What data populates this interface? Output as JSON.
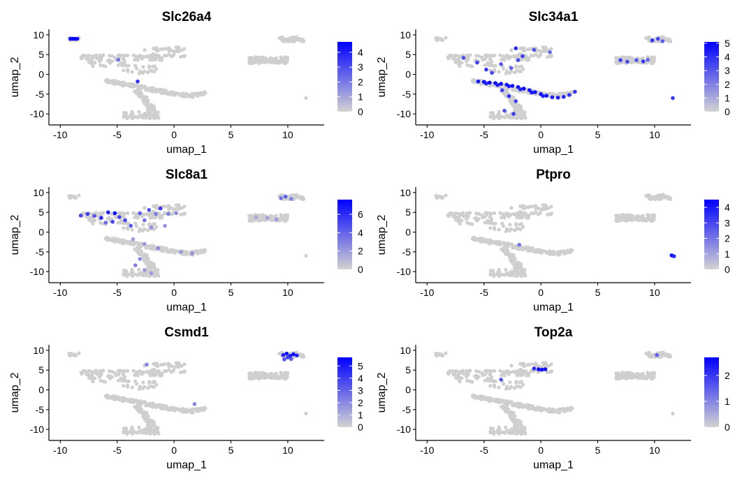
{
  "chart_data": [
    {
      "type": "scatter",
      "title": "Slc26a4",
      "xlabel": "umap_1",
      "ylabel": "umap_2",
      "xlim": [
        -11,
        13.2
      ],
      "ylim": [
        -12.8,
        11.4
      ],
      "xticks": [
        -10,
        -5,
        0,
        5,
        10
      ],
      "yticks": [
        -10,
        -5,
        0,
        5,
        10
      ],
      "grid": false,
      "colorbar": {
        "min": 0,
        "max": 4.7,
        "ticks": [
          0,
          1,
          2,
          3,
          4
        ],
        "low_color": "#d3d3d3",
        "high_color": "#0000ff"
      },
      "points": [
        [
          -9.1,
          9.0,
          4.6
        ],
        [
          -8.9,
          9.0,
          4.5
        ],
        [
          -8.7,
          9.0,
          4.6
        ],
        [
          -8.5,
          9.0,
          4.4
        ],
        [
          -4.9,
          3.7,
          2.2
        ],
        [
          -3.2,
          -1.8,
          3.6
        ]
      ]
    },
    {
      "type": "scatter",
      "title": "Slc34a1",
      "xlabel": "umap_1",
      "ylabel": "umap_2",
      "xlim": [
        -11,
        13.2
      ],
      "ylim": [
        -12.8,
        11.4
      ],
      "xticks": [
        -10,
        -5,
        0,
        5,
        10
      ],
      "yticks": [
        -10,
        -5,
        0,
        5,
        10
      ],
      "grid": false,
      "colorbar": {
        "min": 0,
        "max": 5.1,
        "ticks": [
          0,
          1,
          2,
          3,
          4,
          5
        ],
        "low_color": "#d3d3d3",
        "high_color": "#0000ff"
      },
      "points": [
        [
          -5.5,
          -1.8,
          4.6
        ],
        [
          -5.0,
          -1.9,
          4.8
        ],
        [
          -4.5,
          -2.1,
          4.9
        ],
        [
          -4.0,
          -2.2,
          4.7
        ],
        [
          -3.5,
          -2.4,
          4.9
        ],
        [
          -3.0,
          -2.6,
          4.6
        ],
        [
          -2.5,
          -2.9,
          4.8
        ],
        [
          -2.0,
          -3.2,
          4.7
        ],
        [
          -1.5,
          -3.6,
          4.9
        ],
        [
          -1.0,
          -4.0,
          4.6
        ],
        [
          -0.5,
          -4.5,
          4.7
        ],
        [
          0.0,
          -5.0,
          4.9
        ],
        [
          0.5,
          -5.4,
          4.6
        ],
        [
          1.0,
          -5.8,
          4.4
        ],
        [
          1.5,
          -5.9,
          4.5
        ],
        [
          2.0,
          -5.7,
          4.2
        ],
        [
          2.5,
          -5.2,
          4.0
        ],
        [
          3.0,
          -4.4,
          3.8
        ],
        [
          -4.8,
          -2.3,
          4.2
        ],
        [
          -3.8,
          -2.7,
          4.4
        ],
        [
          -2.8,
          -3.0,
          4.5
        ],
        [
          -1.8,
          -3.8,
          4.3
        ],
        [
          -0.8,
          -4.6,
          4.6
        ],
        [
          0.2,
          -5.5,
          4.3
        ],
        [
          -3.4,
          -4.0,
          3.6
        ],
        [
          -2.8,
          -5.5,
          3.9
        ],
        [
          -2.2,
          -6.8,
          3.5
        ],
        [
          -3.2,
          -9.2,
          3.1
        ],
        [
          -2.4,
          -10.0,
          3.6
        ],
        [
          -6.8,
          4.2,
          3.2
        ],
        [
          -5.6,
          3.0,
          3.5
        ],
        [
          -4.8,
          1.2,
          3.8
        ],
        [
          -4.3,
          0.4,
          3.4
        ],
        [
          -3.5,
          2.6,
          3.0
        ],
        [
          -2.0,
          3.6,
          3.3
        ],
        [
          -2.6,
          1.6,
          2.8
        ],
        [
          -1.6,
          4.6,
          3.6
        ],
        [
          -2.2,
          6.6,
          4.2
        ],
        [
          -0.6,
          6.2,
          3.2
        ],
        [
          0.8,
          5.6,
          2.6
        ],
        [
          7.0,
          3.6,
          3.6
        ],
        [
          7.6,
          3.2,
          3.3
        ],
        [
          8.4,
          3.6,
          3.0
        ],
        [
          9.0,
          3.3,
          3.8
        ],
        [
          9.4,
          3.7,
          2.6
        ],
        [
          9.8,
          8.6,
          3.9
        ],
        [
          10.3,
          9.0,
          3.4
        ],
        [
          10.7,
          8.4,
          2.9
        ],
        [
          11.6,
          -6.0,
          3.8
        ]
      ]
    },
    {
      "type": "scatter",
      "title": "Slc8a1",
      "xlabel": "umap_1",
      "ylabel": "umap_2",
      "xlim": [
        -11,
        13.2
      ],
      "ylim": [
        -12.8,
        11.4
      ],
      "xticks": [
        -10,
        -5,
        0,
        5,
        10
      ],
      "yticks": [
        -10,
        -5,
        0,
        5,
        10
      ],
      "grid": false,
      "colorbar": {
        "min": 0,
        "max": 7.6,
        "ticks": [
          0,
          2,
          4,
          6
        ],
        "low_color": "#d3d3d3",
        "high_color": "#0000ff"
      },
      "points": [
        [
          -8.2,
          4.2,
          5.1
        ],
        [
          -7.6,
          4.6,
          5.6
        ],
        [
          -7.0,
          4.1,
          4.6
        ],
        [
          -6.4,
          3.6,
          6.1
        ],
        [
          -5.8,
          5.0,
          6.6
        ],
        [
          -5.2,
          4.8,
          7.1
        ],
        [
          -4.8,
          3.8,
          5.4
        ],
        [
          -4.3,
          3.0,
          4.9
        ],
        [
          -3.8,
          1.6,
          4.4
        ],
        [
          -5.4,
          2.6,
          5.0
        ],
        [
          -6.0,
          2.4,
          3.8
        ],
        [
          -3.0,
          4.8,
          4.2
        ],
        [
          -2.6,
          3.0,
          3.6
        ],
        [
          -2.2,
          5.6,
          4.8
        ],
        [
          -1.6,
          4.6,
          3.2
        ],
        [
          -1.2,
          6.0,
          5.6
        ],
        [
          -0.5,
          4.6,
          3.0
        ],
        [
          0.2,
          4.8,
          2.6
        ],
        [
          -0.8,
          1.6,
          2.2
        ],
        [
          -2.0,
          1.2,
          2.4
        ],
        [
          -3.6,
          -1.8,
          2.0
        ],
        [
          -2.6,
          -3.0,
          2.2
        ],
        [
          -1.4,
          -4.1,
          2.6
        ],
        [
          0.6,
          -5.0,
          2.0
        ],
        [
          1.6,
          -5.4,
          2.4
        ],
        [
          -3.0,
          -6.8,
          2.6
        ],
        [
          -3.4,
          -8.4,
          3.0
        ],
        [
          -2.6,
          -9.6,
          2.2
        ],
        [
          -2.0,
          -10.4,
          2.0
        ],
        [
          9.4,
          8.6,
          3.6
        ],
        [
          9.8,
          9.0,
          4.2
        ],
        [
          10.3,
          8.4,
          3.0
        ],
        [
          8.2,
          3.6,
          1.8
        ],
        [
          9.0,
          3.2,
          2.0
        ],
        [
          7.2,
          3.8,
          1.6
        ]
      ]
    },
    {
      "type": "scatter",
      "title": "Ptpro",
      "xlabel": "umap_1",
      "ylabel": "umap_2",
      "xlim": [
        -11,
        13.2
      ],
      "ylim": [
        -12.8,
        11.4
      ],
      "xticks": [
        -10,
        -5,
        0,
        5,
        10
      ],
      "yticks": [
        -10,
        -5,
        0,
        5,
        10
      ],
      "grid": false,
      "colorbar": {
        "min": 0,
        "max": 4.5,
        "ticks": [
          0,
          1,
          2,
          3,
          4
        ],
        "low_color": "#d3d3d3",
        "high_color": "#0000ff"
      },
      "points": [
        [
          11.5,
          -5.9,
          4.3
        ],
        [
          11.7,
          -6.1,
          3.8
        ],
        [
          -1.9,
          -3.2,
          2.0
        ]
      ]
    },
    {
      "type": "scatter",
      "title": "Csmd1",
      "xlabel": "umap_1",
      "ylabel": "umap_2",
      "xlim": [
        -11,
        13.2
      ],
      "ylim": [
        -12.8,
        11.4
      ],
      "xticks": [
        -10,
        -5,
        0,
        5,
        10
      ],
      "yticks": [
        -10,
        -5,
        0,
        5,
        10
      ],
      "grid": false,
      "colorbar": {
        "min": 0,
        "max": 5.7,
        "ticks": [
          0,
          1,
          2,
          3,
          4,
          5
        ],
        "low_color": "#d3d3d3",
        "high_color": "#0000ff"
      },
      "points": [
        [
          9.6,
          8.8,
          4.9
        ],
        [
          9.9,
          9.2,
          5.4
        ],
        [
          10.2,
          8.6,
          5.1
        ],
        [
          10.5,
          9.0,
          5.5
        ],
        [
          10.8,
          8.7,
          4.7
        ],
        [
          10.0,
          8.2,
          4.1
        ],
        [
          9.7,
          7.7,
          3.6
        ],
        [
          10.3,
          7.8,
          3.2
        ],
        [
          -2.4,
          6.4,
          2.2
        ],
        [
          1.8,
          -3.6,
          2.0
        ]
      ]
    },
    {
      "type": "scatter",
      "title": "Top2a",
      "xlabel": "umap_1",
      "ylabel": "umap_2",
      "xlim": [
        -11,
        13.2
      ],
      "ylim": [
        -12.8,
        11.4
      ],
      "xticks": [
        -10,
        -5,
        0,
        5,
        10
      ],
      "yticks": [
        -10,
        -5,
        0,
        5,
        10
      ],
      "grid": false,
      "colorbar": {
        "min": 0,
        "max": 2.7,
        "ticks": [
          0,
          1,
          2
        ],
        "low_color": "#d3d3d3",
        "high_color": "#0000ff"
      },
      "points": [
        [
          -0.2,
          5.2,
          2.6
        ],
        [
          0.1,
          5.1,
          2.5
        ],
        [
          0.4,
          5.2,
          2.6
        ],
        [
          -0.6,
          5.4,
          2.2
        ],
        [
          -3.5,
          2.6,
          1.6
        ],
        [
          10.2,
          8.8,
          1.5
        ]
      ]
    }
  ]
}
